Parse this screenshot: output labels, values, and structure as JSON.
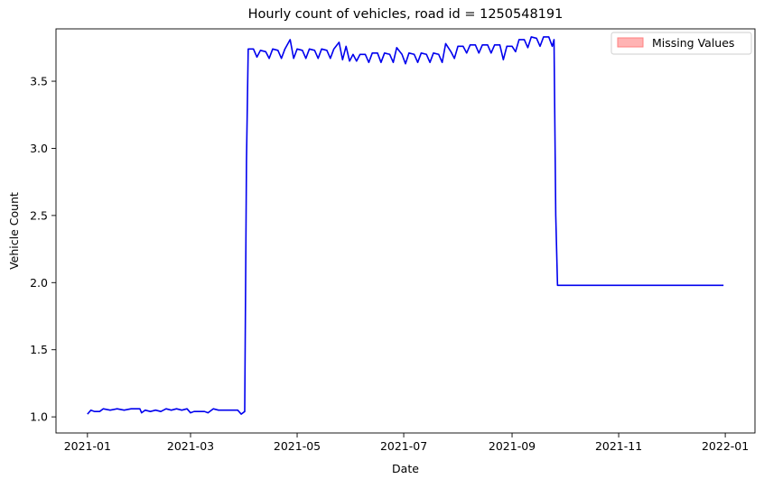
{
  "chart_data": {
    "type": "line",
    "title": "Hourly count of vehicles, road id = 1250548191",
    "xlabel": "Date",
    "ylabel": "Vehicle Count",
    "xlim": [
      "2020-12-14",
      "2022-01-18"
    ],
    "ylim": [
      0.88,
      3.89
    ],
    "x_ticks": [
      "2021-01",
      "2021-03",
      "2021-05",
      "2021-07",
      "2021-09",
      "2021-11",
      "2022-01"
    ],
    "y_ticks": [
      "1.0",
      "1.5",
      "2.0",
      "2.5",
      "3.0",
      "3.5"
    ],
    "grid": false,
    "legend": {
      "position": "top-right",
      "entries": [
        {
          "label": "Missing Values",
          "color": "#ffb3b3"
        }
      ]
    },
    "series": [
      {
        "color": "#0000ee",
        "points": [
          [
            "2021-01-01",
            1.02
          ],
          [
            "2021-01-03",
            1.05
          ],
          [
            "2021-01-05",
            1.04
          ],
          [
            "2021-01-08",
            1.04
          ],
          [
            "2021-01-10",
            1.06
          ],
          [
            "2021-01-14",
            1.05
          ],
          [
            "2021-01-18",
            1.06
          ],
          [
            "2021-01-22",
            1.05
          ],
          [
            "2021-01-26",
            1.06
          ],
          [
            "2021-01-31",
            1.06
          ],
          [
            "2021-02-01",
            1.03
          ],
          [
            "2021-02-03",
            1.05
          ],
          [
            "2021-02-06",
            1.04
          ],
          [
            "2021-02-09",
            1.05
          ],
          [
            "2021-02-12",
            1.04
          ],
          [
            "2021-02-15",
            1.06
          ],
          [
            "2021-02-18",
            1.05
          ],
          [
            "2021-02-21",
            1.06
          ],
          [
            "2021-02-24",
            1.05
          ],
          [
            "2021-02-27",
            1.06
          ],
          [
            "2021-03-01",
            1.03
          ],
          [
            "2021-03-03",
            1.04
          ],
          [
            "2021-03-06",
            1.04
          ],
          [
            "2021-03-09",
            1.04
          ],
          [
            "2021-03-11",
            1.03
          ],
          [
            "2021-03-14",
            1.06
          ],
          [
            "2021-03-17",
            1.05
          ],
          [
            "2021-03-21",
            1.05
          ],
          [
            "2021-03-25",
            1.05
          ],
          [
            "2021-03-28",
            1.05
          ],
          [
            "2021-03-30",
            1.02
          ],
          [
            "2021-04-01",
            1.04
          ],
          [
            "2021-04-02",
            2.9
          ],
          [
            "2021-04-03",
            3.74
          ],
          [
            "2021-04-06",
            3.74
          ],
          [
            "2021-04-08",
            3.68
          ],
          [
            "2021-04-10",
            3.73
          ],
          [
            "2021-04-13",
            3.72
          ],
          [
            "2021-04-15",
            3.67
          ],
          [
            "2021-04-17",
            3.74
          ],
          [
            "2021-04-20",
            3.73
          ],
          [
            "2021-04-22",
            3.67
          ],
          [
            "2021-04-24",
            3.74
          ],
          [
            "2021-04-27",
            3.81
          ],
          [
            "2021-04-29",
            3.67
          ],
          [
            "2021-05-01",
            3.74
          ],
          [
            "2021-05-04",
            3.73
          ],
          [
            "2021-05-06",
            3.67
          ],
          [
            "2021-05-08",
            3.74
          ],
          [
            "2021-05-11",
            3.73
          ],
          [
            "2021-05-13",
            3.67
          ],
          [
            "2021-05-15",
            3.74
          ],
          [
            "2021-05-18",
            3.73
          ],
          [
            "2021-05-20",
            3.67
          ],
          [
            "2021-05-22",
            3.74
          ],
          [
            "2021-05-25",
            3.79
          ],
          [
            "2021-05-27",
            3.66
          ],
          [
            "2021-05-29",
            3.76
          ],
          [
            "2021-05-31",
            3.65
          ],
          [
            "2021-06-02",
            3.7
          ],
          [
            "2021-06-04",
            3.65
          ],
          [
            "2021-06-06",
            3.7
          ],
          [
            "2021-06-09",
            3.7
          ],
          [
            "2021-06-11",
            3.64
          ],
          [
            "2021-06-13",
            3.71
          ],
          [
            "2021-06-16",
            3.71
          ],
          [
            "2021-06-18",
            3.64
          ],
          [
            "2021-06-20",
            3.71
          ],
          [
            "2021-06-23",
            3.7
          ],
          [
            "2021-06-25",
            3.64
          ],
          [
            "2021-06-27",
            3.75
          ],
          [
            "2021-06-30",
            3.7
          ],
          [
            "2021-07-02",
            3.63
          ],
          [
            "2021-07-04",
            3.71
          ],
          [
            "2021-07-07",
            3.7
          ],
          [
            "2021-07-09",
            3.64
          ],
          [
            "2021-07-11",
            3.71
          ],
          [
            "2021-07-14",
            3.7
          ],
          [
            "2021-07-16",
            3.64
          ],
          [
            "2021-07-18",
            3.71
          ],
          [
            "2021-07-21",
            3.7
          ],
          [
            "2021-07-23",
            3.64
          ],
          [
            "2021-07-25",
            3.78
          ],
          [
            "2021-07-28",
            3.72
          ],
          [
            "2021-07-30",
            3.67
          ],
          [
            "2021-08-01",
            3.76
          ],
          [
            "2021-08-04",
            3.76
          ],
          [
            "2021-08-06",
            3.71
          ],
          [
            "2021-08-08",
            3.77
          ],
          [
            "2021-08-11",
            3.77
          ],
          [
            "2021-08-13",
            3.71
          ],
          [
            "2021-08-15",
            3.77
          ],
          [
            "2021-08-18",
            3.77
          ],
          [
            "2021-08-20",
            3.71
          ],
          [
            "2021-08-22",
            3.77
          ],
          [
            "2021-08-25",
            3.77
          ],
          [
            "2021-08-27",
            3.66
          ],
          [
            "2021-08-29",
            3.76
          ],
          [
            "2021-09-01",
            3.76
          ],
          [
            "2021-09-03",
            3.72
          ],
          [
            "2021-09-05",
            3.81
          ],
          [
            "2021-09-08",
            3.81
          ],
          [
            "2021-09-10",
            3.75
          ],
          [
            "2021-09-12",
            3.83
          ],
          [
            "2021-09-15",
            3.82
          ],
          [
            "2021-09-17",
            3.76
          ],
          [
            "2021-09-19",
            3.83
          ],
          [
            "2021-09-22",
            3.83
          ],
          [
            "2021-09-24",
            3.76
          ],
          [
            "2021-09-25",
            3.81
          ],
          [
            "2021-09-26",
            2.5
          ],
          [
            "2021-09-27",
            1.98
          ],
          [
            "2021-10-15",
            1.98
          ],
          [
            "2021-10-31",
            1.98
          ],
          [
            "2021-11-01",
            1.98
          ],
          [
            "2021-11-30",
            1.98
          ],
          [
            "2021-12-31",
            1.98
          ]
        ]
      }
    ]
  }
}
